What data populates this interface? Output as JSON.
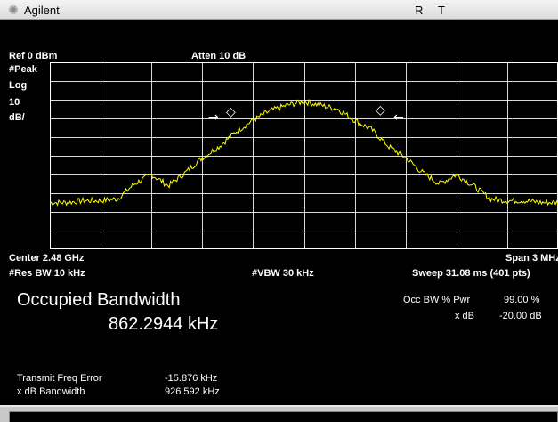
{
  "window": {
    "brand": "Agilent",
    "logo_icon": "agilent-spark-icon",
    "mode_r": "R",
    "mode_t": "T"
  },
  "analyzer": {
    "ref_level": "Ref 0 dBm",
    "attenuation": "Atten 10 dB",
    "detector": "#Peak",
    "scale_type": "Log",
    "scale_value": "10",
    "scale_unit": "dB/",
    "center": "Center 2.48 GHz",
    "span": "Span 3 MHz",
    "res_bw": "#Res BW 10 kHz",
    "vbw": "#VBW 30 kHz",
    "sweep": "Sweep 31.08 ms (401 pts)"
  },
  "colors": {
    "trace": "#ffff00",
    "background": "#000000",
    "grid": "#ffffff"
  },
  "measurement": {
    "title": "Occupied Bandwidth",
    "value": "862.2944 kHz",
    "occ_bw_pwr_label": "Occ BW % Pwr",
    "occ_bw_pwr_value": "99.00 %",
    "x_db_label": "x dB",
    "x_db_value": "-20.00 dB",
    "freq_error_label": "Transmit Freq Error",
    "freq_error_value": "-15.876 kHz",
    "x_db_bw_label": "x dB Bandwidth",
    "x_db_bw_value": "926.592 kHz"
  },
  "markers": {
    "left_arrow": "→",
    "right_arrow": "←",
    "marker_symbol": "◇"
  },
  "chart_data": {
    "type": "line",
    "xlabel": "",
    "ylabel": "",
    "x": [
      -1.5,
      -1.4,
      -1.3,
      -1.2,
      -1.1,
      -1.0,
      -0.9,
      -0.8,
      -0.7,
      -0.6,
      -0.5,
      -0.4,
      -0.3,
      -0.2,
      -0.1,
      0.0,
      0.1,
      0.2,
      0.3,
      0.4,
      0.5,
      0.6,
      0.7,
      0.8,
      0.9,
      1.0,
      1.1,
      1.2,
      1.3,
      1.4,
      1.5
    ],
    "values": [
      -75,
      -75,
      -74,
      -74,
      -73,
      -65,
      -60,
      -66,
      -59,
      -51,
      -45,
      -37,
      -31,
      -26,
      -23,
      -21,
      -23,
      -25,
      -31,
      -36,
      -45,
      -51,
      -59,
      -65,
      -60,
      -66,
      -73,
      -74,
      -74,
      -75,
      -75
    ],
    "ylim": [
      -100,
      0
    ],
    "xlim": [
      -1.5,
      1.5
    ],
    "grid": true,
    "series": [
      {
        "values": [
          -75,
          -75,
          -74,
          -74,
          -73,
          -65,
          -60,
          -66,
          -59,
          -51,
          -45,
          -37,
          -31,
          -26,
          -23,
          -21,
          -23,
          -25,
          -31,
          -36,
          -45,
          -51,
          -59,
          -65,
          -60,
          -66,
          -73,
          -74,
          -74,
          -75,
          -75
        ]
      }
    ]
  }
}
